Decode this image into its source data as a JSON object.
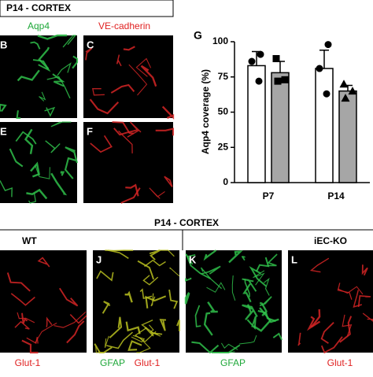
{
  "top": {
    "header": "P14 - CORTEX",
    "left_label": "Aqp4",
    "right_label": "VE-cadherin",
    "letters": [
      "B",
      "C",
      "E",
      "F"
    ]
  },
  "bottom": {
    "header": "P14 - CORTEX",
    "group_left": "WT",
    "group_right": "iEC-KO",
    "letters": [
      "J",
      "K",
      "L"
    ],
    "captions": [
      "Glut-1",
      "GFAP",
      "Glut-1",
      "GFAP",
      "Glut-1"
    ]
  },
  "chart_data": {
    "type": "bar",
    "panel": "G",
    "y_label": "Aqp4 coverage (%)",
    "categories": [
      "P7",
      "P14"
    ],
    "ylim": [
      0,
      100
    ],
    "yticks": [
      0,
      25,
      50,
      75,
      100
    ],
    "series": [
      {
        "color": "#ffffff",
        "values": [
          83,
          81
        ],
        "errors": [
          10,
          13
        ],
        "markers": [
          "circle",
          "circle"
        ],
        "points": [
          [
            91,
            86,
            72
          ],
          [
            98,
            81,
            63
          ]
        ]
      },
      {
        "color": "#a6a6a6",
        "values": [
          78,
          65
        ],
        "errors": [
          8,
          4
        ],
        "markers": [
          "square",
          "triangle"
        ],
        "points": [
          [
            88,
            73,
            72
          ],
          [
            70,
            65,
            60
          ]
        ]
      }
    ]
  }
}
